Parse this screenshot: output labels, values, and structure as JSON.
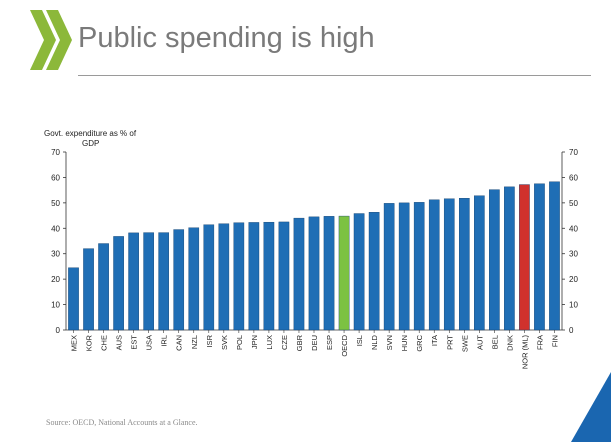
{
  "slide": {
    "title": "Public spending is high",
    "source": "Source: OECD, National Accounts at a Glance.",
    "colors": {
      "bar": "#1f6eb5",
      "bar_edge": "#0f3f6e",
      "oecd": "#7cc242",
      "norway": "#d0312d",
      "title": "#7a7a7a",
      "logo": "#8cb83a",
      "corner": "#1a66b0"
    }
  },
  "chart_data": {
    "type": "bar",
    "ylabel": "Govt. expenditure as % of GDP",
    "ylim": [
      0,
      70
    ],
    "yticks": [
      0,
      10,
      20,
      30,
      40,
      50,
      60,
      70
    ],
    "secondary_axis": true,
    "grid": false,
    "categories": [
      "MEX",
      "KOR",
      "CHE",
      "AUS",
      "EST",
      "USA",
      "IRL",
      "CAN",
      "NZL",
      "ISR",
      "SVK",
      "POL",
      "JPN",
      "LUX",
      "CZE",
      "GBR",
      "DEU",
      "ESP",
      "OECD",
      "ISL",
      "NLD",
      "SVN",
      "HUN",
      "GRC",
      "ITA",
      "PRT",
      "SWE",
      "AUT",
      "BEL",
      "DNK",
      "NOR (ML)",
      "FRA",
      "FIN"
    ],
    "values": [
      24.5,
      32,
      34,
      36.8,
      38.2,
      38.3,
      38.3,
      39.5,
      40.2,
      41.4,
      41.8,
      42.2,
      42.3,
      42.4,
      42.5,
      44,
      44.5,
      44.7,
      44.8,
      45.8,
      46.3,
      49.8,
      50,
      50.2,
      51.2,
      51.6,
      51.8,
      52.8,
      55.2,
      56.3,
      57.2,
      57.5,
      58.3
    ],
    "highlights": {
      "OECD": "oecd",
      "NOR (ML)": "norway"
    }
  }
}
